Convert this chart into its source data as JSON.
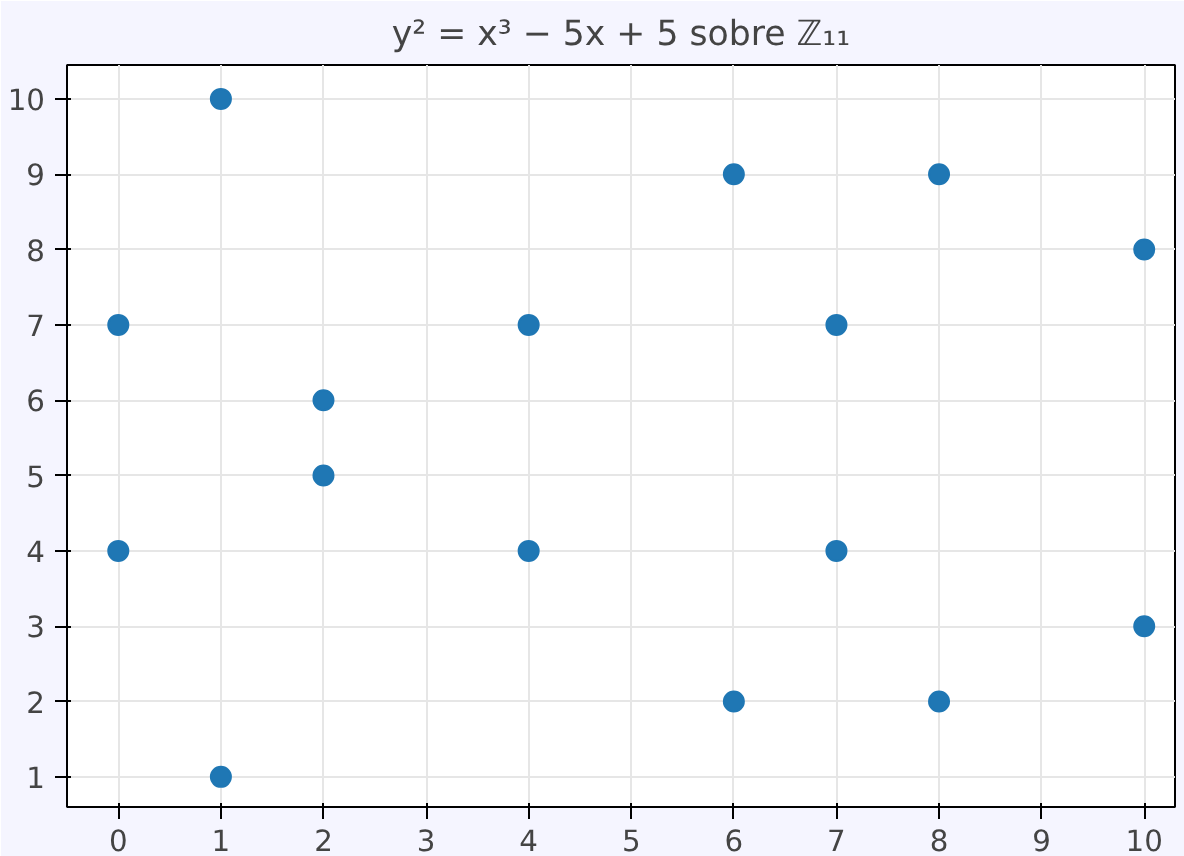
{
  "chart_data": {
    "type": "scatter",
    "title": "y² = x³ − 5x + 5 sobre ℤ₁₁",
    "x": [
      0,
      0,
      1,
      1,
      2,
      2,
      4,
      4,
      6,
      6,
      7,
      7,
      8,
      8,
      10,
      10
    ],
    "series": [
      {
        "color": "#1f77b4",
        "values": [
          4,
          7,
          1,
          10,
          5,
          6,
          4,
          7,
          2,
          9,
          4,
          7,
          2,
          9,
          3,
          8
        ]
      }
    ],
    "xlim": [
      -0.5,
      10.3
    ],
    "ylim": [
      0.6,
      10.45
    ],
    "xticks": [
      0,
      1,
      2,
      3,
      4,
      5,
      6,
      7,
      8,
      9,
      10
    ],
    "yticks": [
      1,
      2,
      3,
      4,
      5,
      6,
      7,
      8,
      9,
      10
    ],
    "grid": true,
    "marker": "circle"
  }
}
